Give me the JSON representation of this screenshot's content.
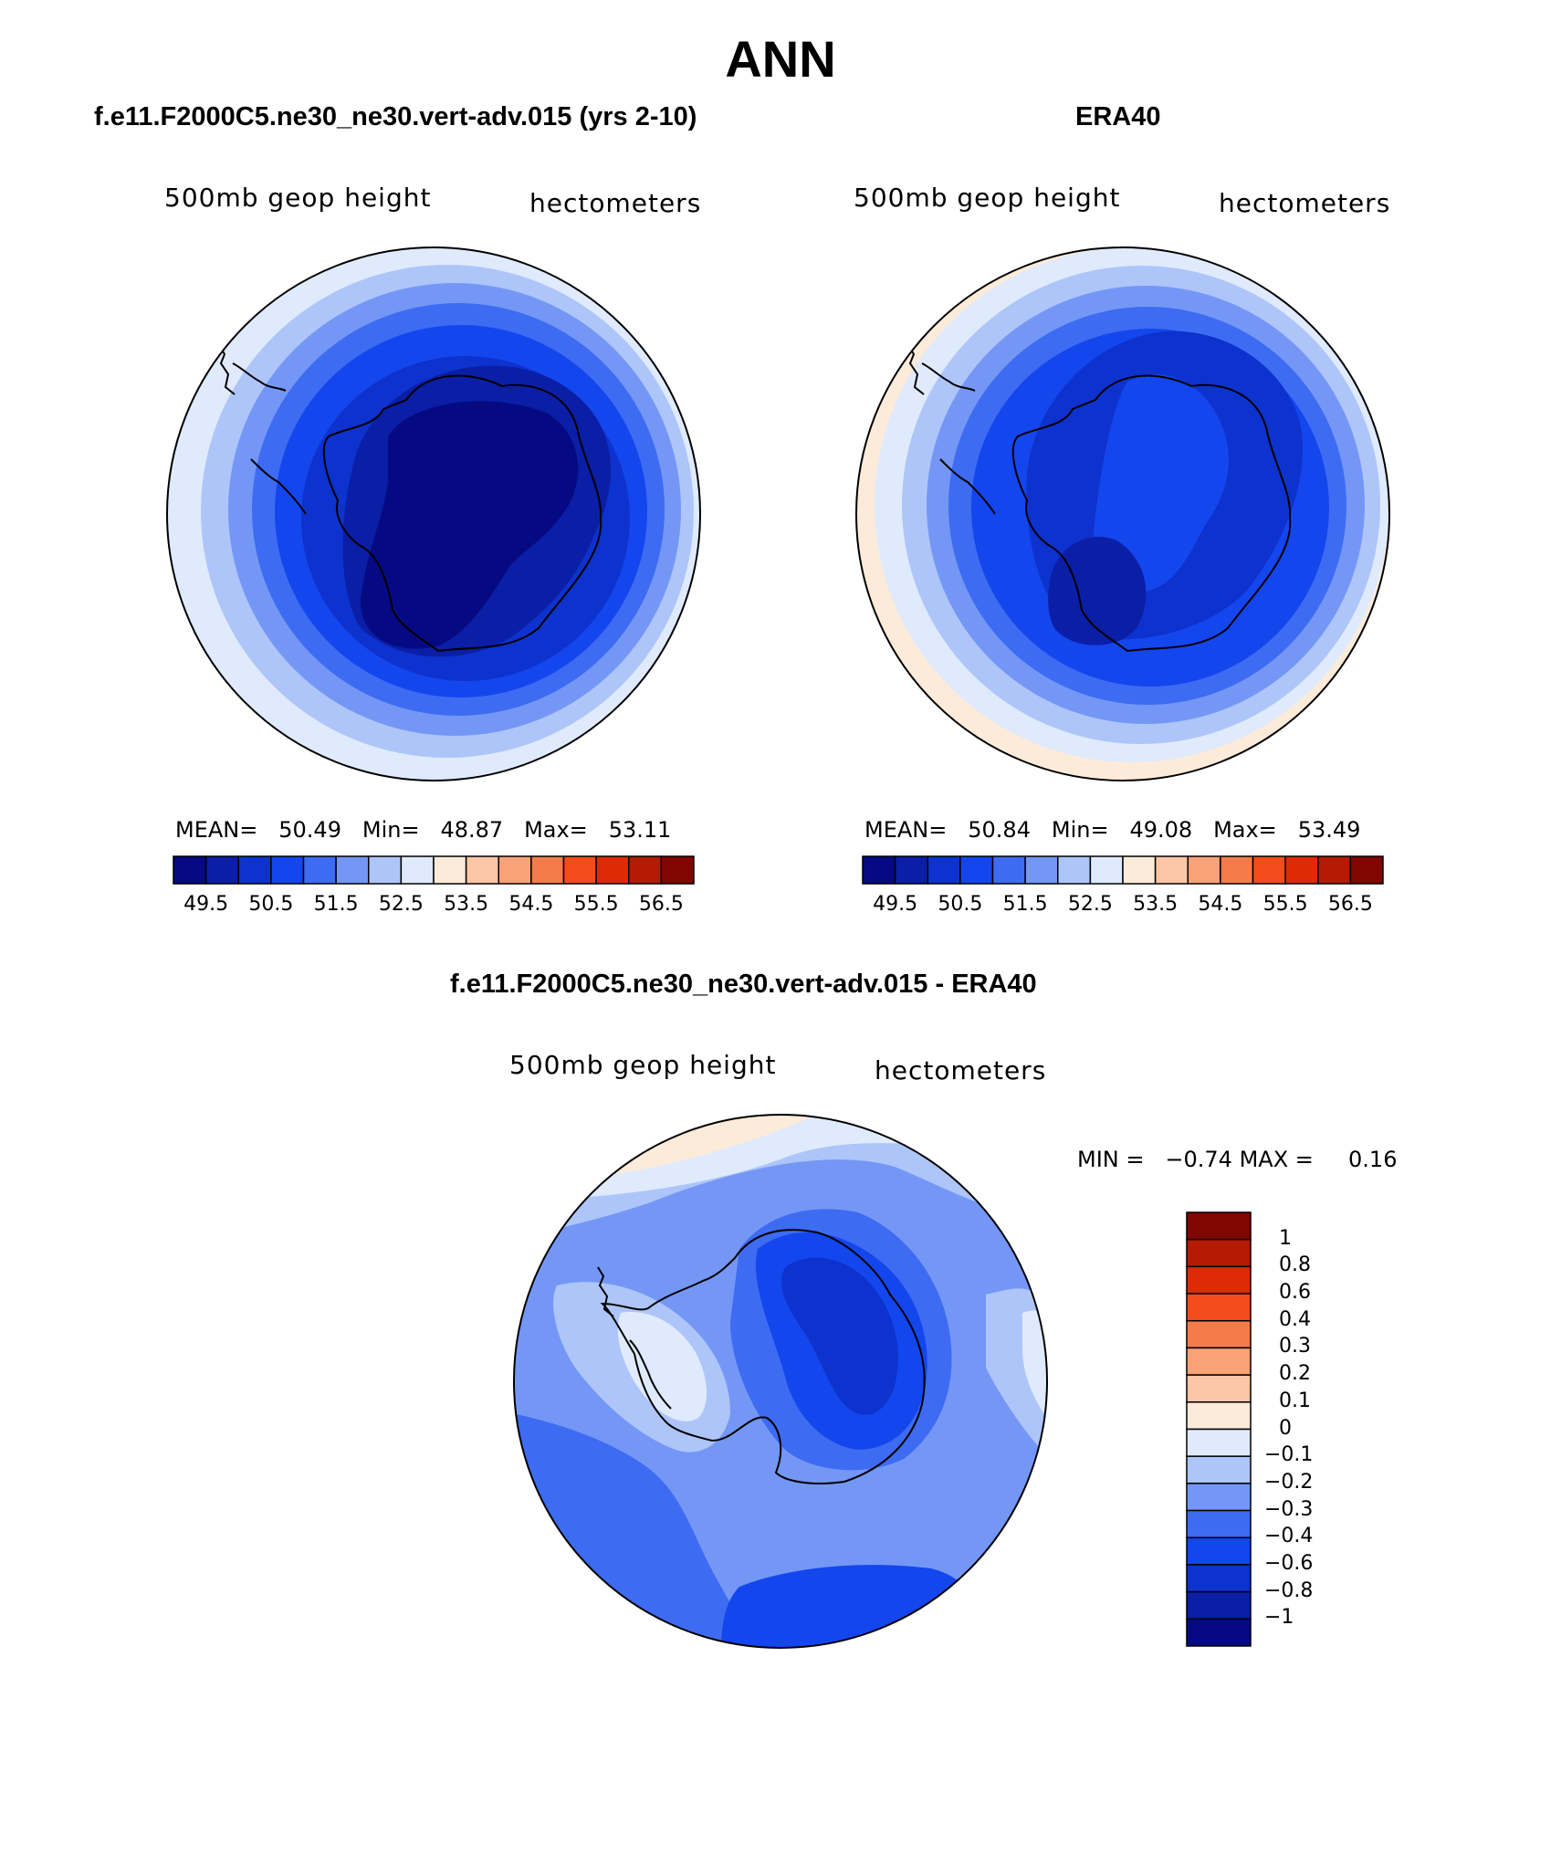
{
  "figure": {
    "title": "ANN"
  },
  "panels": [
    {
      "title": "f.e11.F2000C5.ne30_ne30.vert-adv.015 (yrs 2-10)",
      "left_label": "500mb geop height",
      "right_label": "hectometers",
      "stats": {
        "mean_label": "MEAN=",
        "mean": "50.49",
        "min_label": "Min=",
        "min": "48.87",
        "max_label": "Max=",
        "max": "53.11"
      },
      "colorbar_ticks": [
        "49.5",
        "50.5",
        "51.5",
        "52.5",
        "53.5",
        "54.5",
        "55.5",
        "56.5"
      ]
    },
    {
      "title": "ERA40",
      "left_label": "500mb geop height",
      "right_label": "hectometers",
      "stats": {
        "mean_label": "MEAN=",
        "mean": "50.84",
        "min_label": "Min=",
        "min": "49.08",
        "max_label": "Max=",
        "max": "53.49"
      },
      "colorbar_ticks": [
        "49.5",
        "50.5",
        "51.5",
        "52.5",
        "53.5",
        "54.5",
        "55.5",
        "56.5"
      ]
    },
    {
      "title": "f.e11.F2000C5.ne30_ne30.vert-adv.015 - ERA40",
      "left_label": "500mb geop height",
      "right_label": "hectometers",
      "min_label": "MIN =",
      "min": "−0.74",
      "max_label": "MAX =",
      "max": "0.16",
      "colorbar_ticks": [
        "1",
        "0.8",
        "0.6",
        "0.4",
        "0.3",
        "0.2",
        "0.1",
        "0",
        "−0.1",
        "−0.2",
        "−0.3",
        "−0.4",
        "−0.6",
        "−0.8",
        "−1"
      ]
    }
  ],
  "colors": {
    "abs_scale": [
      "#050a82",
      "#0a1ea6",
      "#0d32cd",
      "#1446ee",
      "#3d6bf2",
      "#7497f6",
      "#aec5fa",
      "#dfeafd",
      "#fdebd9",
      "#fcc6a7",
      "#f9a277",
      "#f67b4b",
      "#f44b1d",
      "#df2a07",
      "#b41a04",
      "#7f0601"
    ],
    "diff_scale": [
      "#7f0601",
      "#b41a04",
      "#df2a07",
      "#f44b1d",
      "#f67b4b",
      "#f9a277",
      "#fcc6a7",
      "#fdebd9",
      "#dfeafd",
      "#aec5fa",
      "#7497f6",
      "#3d6bf2",
      "#1446ee",
      "#0d32cd",
      "#0a1ea6",
      "#050a82"
    ]
  }
}
